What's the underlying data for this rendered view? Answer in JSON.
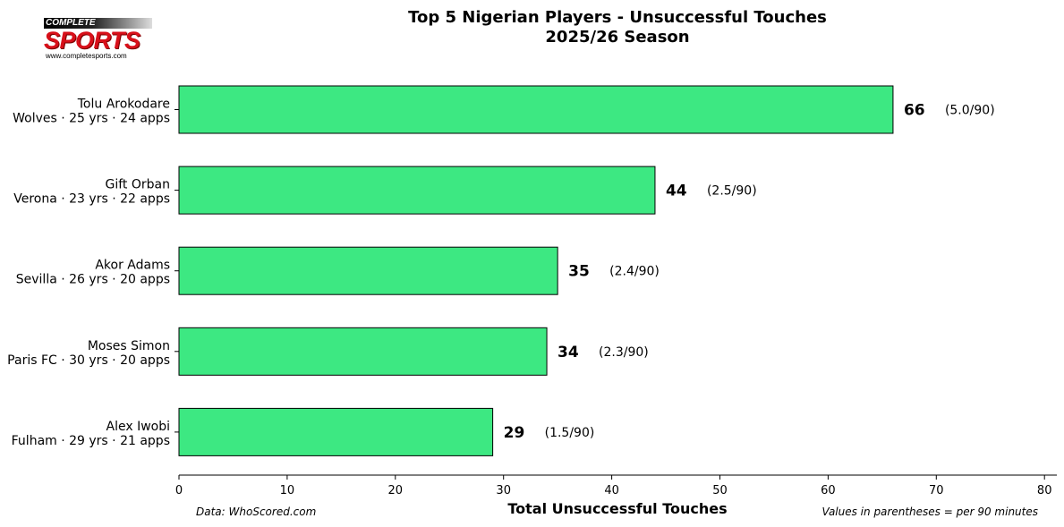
{
  "logo": {
    "top_text": "COMPLETE",
    "main_text": "SPORTS",
    "url_text": "www.completesports.com"
  },
  "chart_data": {
    "type": "bar",
    "orientation": "horizontal",
    "title_line1": "Top 5 Nigerian Players - Unsuccessful Touches",
    "title_line2": "2025/26 Season",
    "xlabel": "Total Unsuccessful Touches",
    "xlim": [
      0,
      80
    ],
    "xticks": [
      0,
      10,
      20,
      30,
      40,
      50,
      60,
      70,
      80
    ],
    "bar_color": "#3de882",
    "categories": [
      {
        "name": "Tolu Arokodare",
        "details": "Wolves · 25 yrs · 24 apps",
        "value": 66,
        "per90": "(5.0/90)"
      },
      {
        "name": "Gift Orban",
        "details": "Verona · 23 yrs · 22 apps",
        "value": 44,
        "per90": "(2.5/90)"
      },
      {
        "name": "Akor Adams",
        "details": "Sevilla · 26 yrs · 20 apps",
        "value": 35,
        "per90": "(2.4/90)"
      },
      {
        "name": "Moses Simon",
        "details": "Paris FC · 30 yrs · 20 apps",
        "value": 34,
        "per90": "(2.3/90)"
      },
      {
        "name": "Alex Iwobi",
        "details": "Fulham · 29 yrs · 21 apps",
        "value": 29,
        "per90": "(1.5/90)"
      }
    ],
    "source_note": "Data: WhoScored.com",
    "per90_note": "Values in parentheses = per 90 minutes"
  }
}
